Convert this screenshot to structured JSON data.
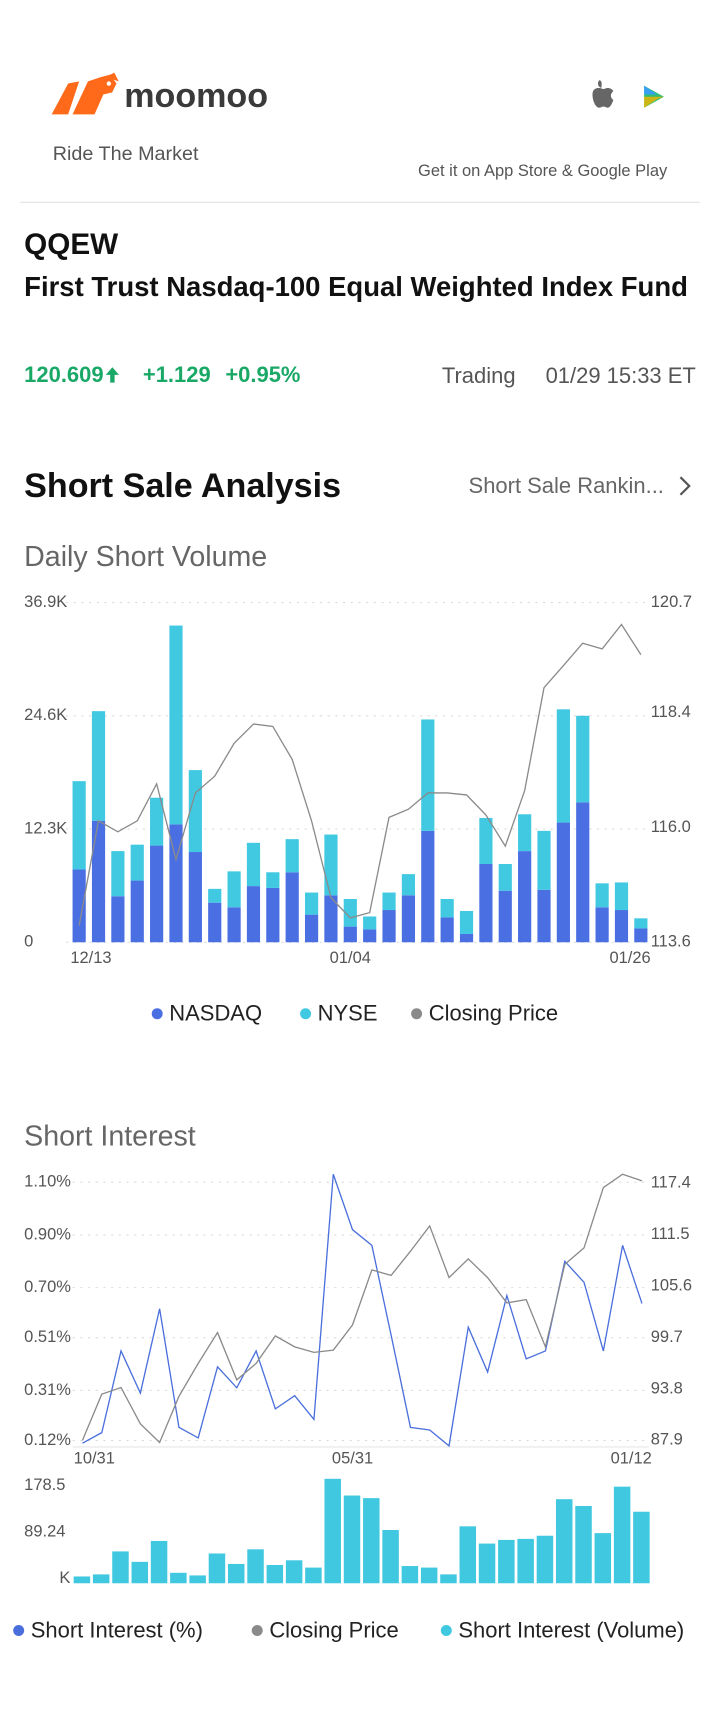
{
  "header": {
    "brand": "moomoo",
    "tagline": "Ride The Market",
    "app_links": "Get it on App Store & Google Play"
  },
  "quote": {
    "symbol": "QQEW",
    "name": "First Trust Nasdaq-100 Equal Weighted Index Fund",
    "price": "120.609",
    "change": "+1.129",
    "change_pct": "+0.95%",
    "status": "Trading",
    "time": "01/29 15:33 ET"
  },
  "section": {
    "title": "Short Sale Analysis",
    "link": "Short Sale Rankin..."
  },
  "chart_data": [
    {
      "type": "bar",
      "title": "Daily Short Volume",
      "stacked": true,
      "grid": true,
      "categories": [
        "12/13",
        null,
        null,
        null,
        null,
        null,
        null,
        null,
        null,
        null,
        null,
        null,
        null,
        null,
        "01/04",
        null,
        null,
        null,
        null,
        null,
        null,
        null,
        null,
        null,
        null,
        null,
        null,
        null,
        null,
        "01/26"
      ],
      "series": [
        {
          "name": "NASDAQ",
          "color": "#4a6fe3",
          "values": [
            7.9,
            13.2,
            5.0,
            6.7,
            10.5,
            12.8,
            9.8,
            4.3,
            3.8,
            6.1,
            5.9,
            7.6,
            3.0,
            5.1,
            1.7,
            1.4,
            3.5,
            5.1,
            12.1,
            2.7,
            0.9,
            8.5,
            5.6,
            9.9,
            5.7,
            13.0,
            15.2,
            3.8,
            3.5,
            1.5
          ]
        },
        {
          "name": "NYSE",
          "color": "#41c9e2",
          "values": [
            9.6,
            11.9,
            4.9,
            3.9,
            5.2,
            21.6,
            8.9,
            1.5,
            3.9,
            4.7,
            1.7,
            3.6,
            2.4,
            6.6,
            3.0,
            1.4,
            1.9,
            2.3,
            12.1,
            2.0,
            2.5,
            5.0,
            2.9,
            4.0,
            6.4,
            12.3,
            9.4,
            2.6,
            3.0,
            1.1
          ]
        },
        {
          "name": "Closing Price",
          "color": "#8a8a8a",
          "type": "line",
          "axis": "y2",
          "values": [
            113.95,
            116.14,
            115.91,
            116.14,
            116.91,
            115.33,
            116.72,
            117.07,
            117.76,
            118.16,
            118.11,
            117.42,
            116.14,
            114.53,
            114.11,
            114.22,
            116.21,
            116.38,
            116.72,
            116.72,
            116.68,
            116.26,
            115.61,
            116.77,
            118.92,
            119.38,
            119.85,
            119.73,
            120.24,
            119.61
          ]
        }
      ],
      "ylim": [
        0,
        36.9
      ],
      "yticks": [
        0,
        {
          "value": 12.3,
          "label": "12.3K"
        },
        {
          "value": 24.6,
          "label": "24.6K"
        },
        {
          "value": 36.9,
          "label": "36.9K"
        }
      ],
      "y2lim": [
        113.6,
        120.7
      ],
      "y2ticks": [
        113.6,
        {
          "value": 116,
          "label": "116.0"
        },
        118.4,
        120.7
      ]
    },
    {
      "type": "line",
      "title": "Short Interest",
      "grid": true,
      "categories": [
        "10/31",
        null,
        null,
        null,
        null,
        null,
        null,
        null,
        null,
        null,
        null,
        null,
        null,
        null,
        "05/31",
        null,
        null,
        null,
        null,
        null,
        null,
        null,
        null,
        null,
        null,
        null,
        null,
        null,
        null,
        "01/12"
      ],
      "series": [
        {
          "name": "Short Interest (%)",
          "color": "#4a6fdc",
          "values": [
            0.11,
            0.15,
            0.46,
            0.3,
            0.62,
            0.17,
            0.13,
            0.4,
            0.32,
            0.46,
            0.24,
            0.29,
            0.2,
            1.13,
            0.92,
            0.86,
            0.52,
            0.17,
            0.16,
            0.1,
            0.55,
            0.38,
            0.67,
            0.43,
            0.46,
            0.8,
            0.72,
            0.46,
            0.86,
            0.64
          ]
        },
        {
          "name": "Closing Price",
          "color": "#8a8a8a",
          "axis": "y2",
          "values": [
            87.9,
            93.2,
            93.95,
            89.79,
            87.65,
            92.94,
            96.73,
            100.26,
            94.84,
            96.73,
            99.88,
            98.62,
            97.99,
            98.24,
            101.14,
            107.45,
            106.82,
            109.59,
            112.49,
            106.56,
            108.71,
            106.56,
            103.66,
            104.04,
            98.62,
            108.08,
            109.97,
            116.9,
            118.42,
            117.66
          ]
        },
        {
          "name": "Short Interest (Volume)",
          "color": "#40c8e0",
          "type": "bar",
          "ylim": [
            0,
            200
          ],
          "yticks": [
            {
              "value": 0,
              "label": "K"
            },
            89.24,
            178.5
          ],
          "values": [
            13,
            17,
            61,
            41,
            81,
            20,
            15,
            57,
            37,
            65,
            35,
            44,
            30,
            200,
            168,
            163,
            102,
            33,
            30,
            17,
            109,
            76,
            83,
            85,
            91,
            161,
            148,
            96,
            185,
            137
          ]
        }
      ],
      "ylim": [
        0.1,
        1.13
      ],
      "yticks": [
        {
          "value": 0.12,
          "label": "0.12%"
        },
        {
          "value": 0.31,
          "label": "0.31%"
        },
        {
          "value": 0.51,
          "label": "0.51%"
        },
        {
          "value": 0.7,
          "label": "0.70%"
        },
        {
          "value": 0.9,
          "label": "0.90%"
        },
        {
          "value": 1.1,
          "label": "1.10%"
        }
      ],
      "y2lim": [
        87.27,
        118.42
      ],
      "y2ticks": [
        87.9,
        93.8,
        99.7,
        105.6,
        111.5,
        117.4
      ]
    }
  ]
}
